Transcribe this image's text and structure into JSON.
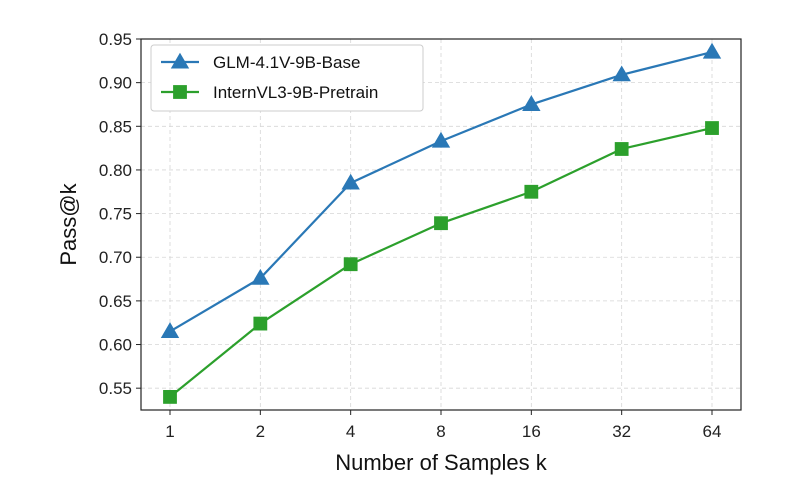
{
  "chart_data": {
    "type": "line",
    "xlabel": "Number of Samples k",
    "ylabel": "Pass@k",
    "categories": [
      "1",
      "2",
      "4",
      "8",
      "16",
      "32",
      "64"
    ],
    "ylim": [
      0.525,
      0.95
    ],
    "yticks": [
      "0.55",
      "0.60",
      "0.65",
      "0.70",
      "0.75",
      "0.80",
      "0.85",
      "0.90",
      "0.95"
    ],
    "grid": true,
    "legend_position": "top-left",
    "series": [
      {
        "name": "GLM-4.1V-9B-Base",
        "color": "#2a78b6",
        "marker": "triangle",
        "values": [
          0.615,
          0.676,
          0.785,
          0.833,
          0.875,
          0.909,
          0.935
        ]
      },
      {
        "name": "InternVL3-9B-Pretrain",
        "color": "#2ca02c",
        "marker": "square",
        "values": [
          0.54,
          0.624,
          0.692,
          0.739,
          0.775,
          0.824,
          0.848
        ]
      }
    ]
  }
}
